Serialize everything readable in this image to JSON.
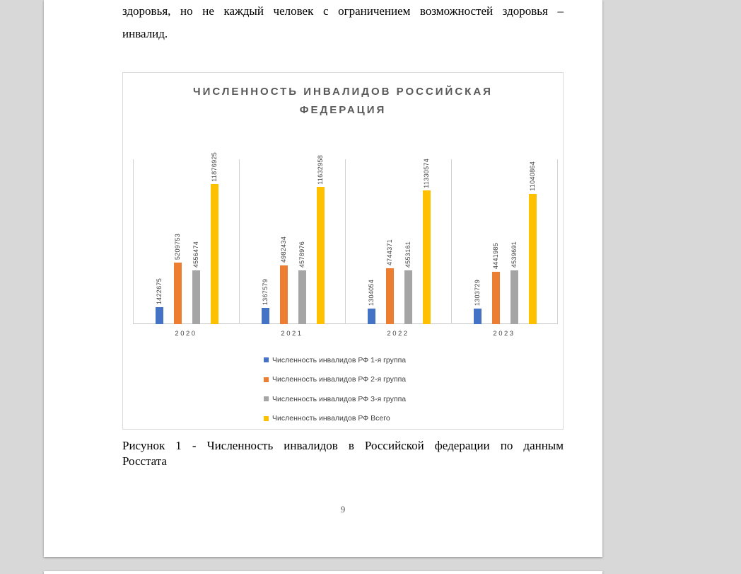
{
  "page": {
    "paragraph_lines": [
      "здоровья, но не каждый человек с ограничением возможностей здоровья –",
      "инвалид."
    ],
    "caption_lines": [
      "Рисунок 1 - Численность инвалидов в Российской федерации по данным",
      "Росстата"
    ],
    "page_number": "9"
  },
  "chart_data": {
    "type": "bar",
    "title": "ЧИСЛЕННОСТЬ ИНВАЛИДОВ РОССИЙСКАЯ ФЕДЕРАЦИЯ",
    "title_lines": [
      "ЧИСЛЕННОСТЬ ИНВАЛИДОВ РОССИЙСКАЯ",
      "ФЕДЕРАЦИЯ"
    ],
    "categories": [
      "2020",
      "2021",
      "2022",
      "2023"
    ],
    "series": [
      {
        "name": "Численность инвалидов РФ 1-я группа",
        "color": "#4472C4",
        "values": [
          1422675,
          1367579,
          1304054,
          1303729
        ]
      },
      {
        "name": "Численность инвалидов РФ 2-я группа",
        "color": "#ED7D31",
        "values": [
          5209753,
          4982434,
          4744371,
          4441985
        ]
      },
      {
        "name": "Численность инвалидов РФ 3-я группа",
        "color": "#A5A5A5",
        "values": [
          4556474,
          4578976,
          4553161,
          4539691
        ]
      },
      {
        "name": "Численность инвалидов РФ Всего",
        "color": "#FFC000",
        "values": [
          11876925,
          11632958,
          11330574,
          11040864
        ]
      }
    ],
    "data_labels": "rotated-vertical",
    "ylim": [
      0,
      14000000
    ],
    "xlabel": "",
    "ylabel": "",
    "grid": "vertical-category-separators",
    "legend_position": "bottom",
    "title_color": "#595959",
    "label_color": "#404040"
  }
}
